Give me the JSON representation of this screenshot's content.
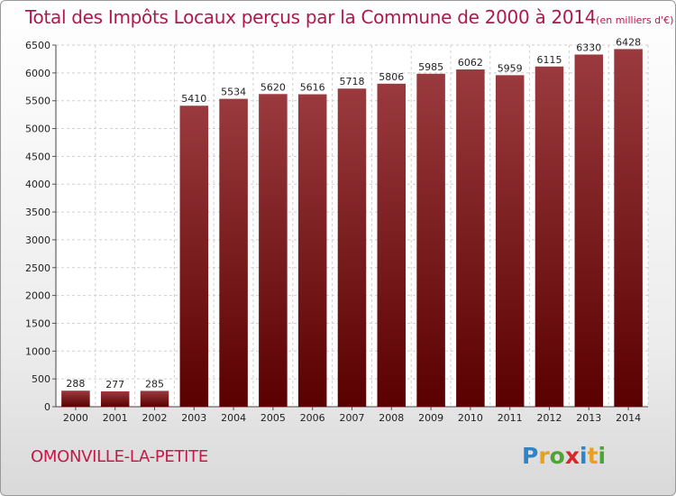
{
  "title": "Total des Impôts Locaux perçus par la Commune de 2000 à 2014",
  "title_unit": "(en milliers d'€)",
  "commune": "OMONVILLE-LA-PETITE",
  "logo": {
    "text": "Proxiti",
    "letters": [
      "P",
      "r",
      "o",
      "x",
      "i",
      "t",
      "i"
    ],
    "colors": [
      "#2f84c6",
      "#e8a021",
      "#4aa531",
      "#d8262a",
      "#2f84c6",
      "#e8a021",
      "#4aa531"
    ]
  },
  "colors": {
    "bar_top": "#9a3a3e",
    "bar_bottom": "#5a0000",
    "title": "#b0184b"
  },
  "chart_data": {
    "type": "bar",
    "categories": [
      "2000",
      "2001",
      "2002",
      "2003",
      "2004",
      "2005",
      "2006",
      "2007",
      "2008",
      "2009",
      "2010",
      "2011",
      "2012",
      "2013",
      "2014"
    ],
    "values": [
      288,
      277,
      285,
      5410,
      5534,
      5620,
      5616,
      5718,
      5806,
      5985,
      6062,
      5959,
      6115,
      6330,
      6428
    ],
    "ylim": [
      0,
      6500
    ],
    "yticks": [
      0,
      500,
      1000,
      1500,
      2000,
      2500,
      3000,
      3500,
      4000,
      4500,
      5000,
      5500,
      6000,
      6500
    ],
    "grid": true,
    "data_labels": true
  }
}
